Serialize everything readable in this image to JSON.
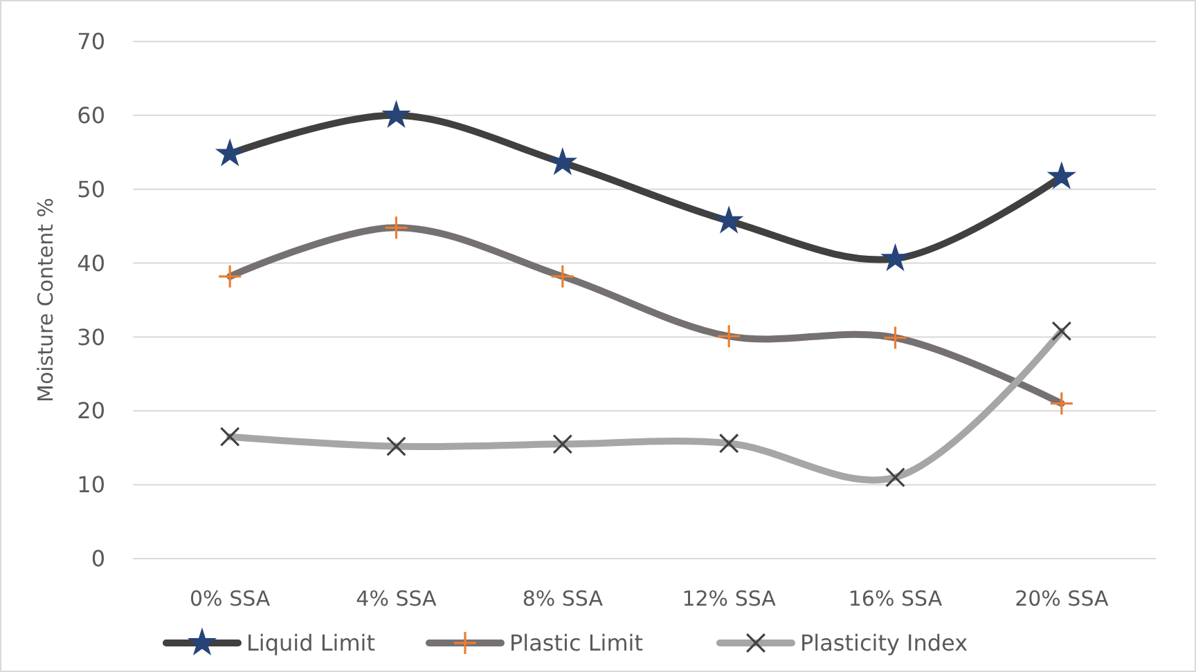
{
  "chart_data": {
    "type": "line",
    "ylabel": "Moisture Content %",
    "categories": [
      "0% SSA",
      "4% SSA",
      "8% SSA",
      "12% SSA",
      "16% SSA",
      "20% SSA"
    ],
    "series": [
      {
        "name": "Liquid Limit",
        "color": "#404040",
        "marker": "star",
        "colors": [
          "#264478",
          "#264478",
          "#264478",
          "#264478",
          "#264478",
          "#264478"
        ],
        "values": [
          54.8,
          60,
          53.6,
          45.7,
          40.6,
          51.7
        ]
      },
      {
        "name": "Plastic Limit",
        "color": "#767171",
        "marker": "plus",
        "colors": [
          "#ed7d31",
          "#ed7d31",
          "#ed7d31",
          "#ed7d31",
          "#ed7d31",
          "#ed7d31"
        ],
        "values": [
          38.2,
          44.8,
          38.2,
          30.1,
          29.9,
          21
        ]
      },
      {
        "name": "Plasticity Index",
        "color": "#a6a6a6",
        "marker": "cross",
        "colors": [
          "#404040",
          "#404040",
          "#404040",
          "#404040",
          "#404040",
          "#404040"
        ],
        "values": [
          16.5,
          15.2,
          15.5,
          15.6,
          11,
          30.8
        ]
      }
    ],
    "ylim": [
      0,
      70
    ],
    "yticks": [
      0,
      10,
      20,
      30,
      40,
      50,
      60,
      70
    ],
    "grid": "y",
    "legend": "bottom",
    "line_style": "solid"
  }
}
